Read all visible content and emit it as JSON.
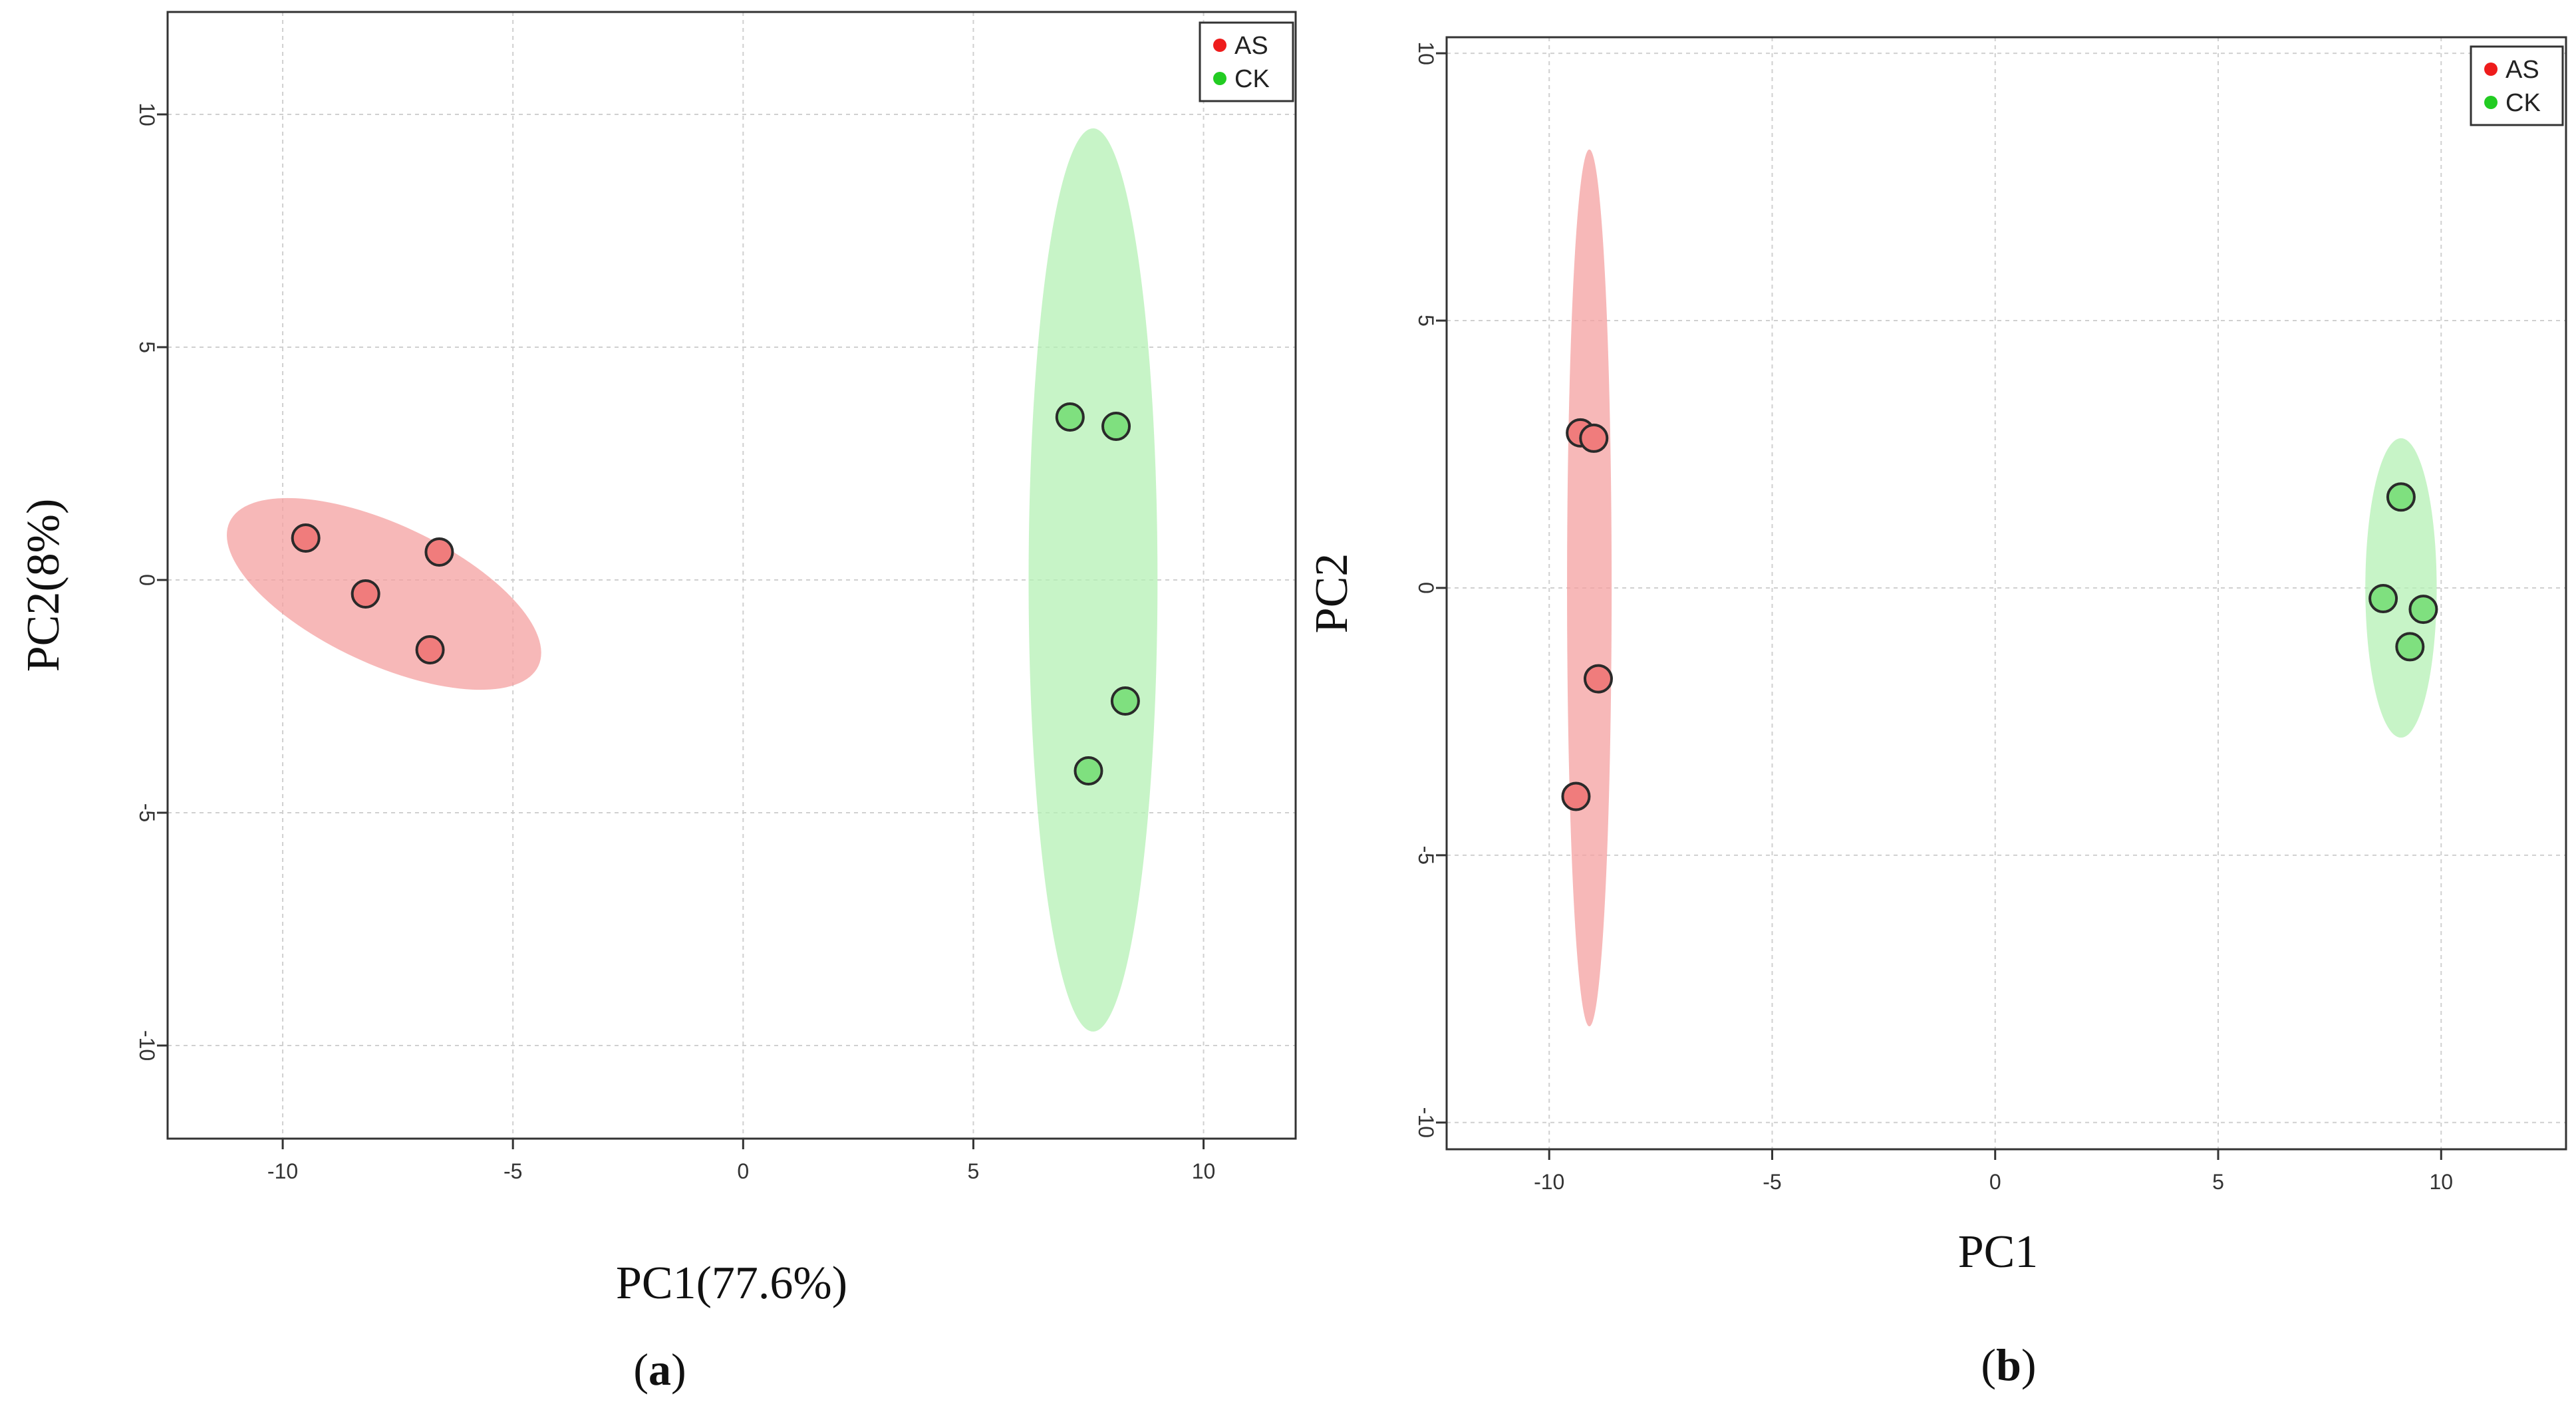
{
  "colors": {
    "as_point": "#f07c7c",
    "ck_point": "#7fe07f",
    "as_ellipse": "#f4a0a0",
    "ck_ellipse": "#b4f0b4",
    "as_legend": "#ee1c1c",
    "ck_legend": "#22cc22",
    "grid": "#d0d0d0"
  },
  "chart_data": [
    {
      "panel": "(a)",
      "panel_letter": "a",
      "type": "scatter",
      "xlabel": "PC1(77.6%)",
      "ylabel": "PC2(8%)",
      "xlim": [
        -12.5,
        12
      ],
      "ylim": [
        -12,
        12.2
      ],
      "xticks": [
        -10,
        -5,
        0,
        5,
        10
      ],
      "yticks": [
        -10,
        -5,
        0,
        5,
        10
      ],
      "grid": true,
      "legend_position": "top-right",
      "series": [
        {
          "name": "AS",
          "x": [
            -9.5,
            -8.2,
            -6.6,
            -6.8
          ],
          "y": [
            0.9,
            -0.3,
            0.6,
            -1.5
          ],
          "ellipse": {
            "cx": -7.8,
            "cy": -0.3,
            "rx": 3.7,
            "ry": 1.5,
            "rotate_deg": 25
          }
        },
        {
          "name": "CK",
          "x": [
            7.1,
            8.1,
            8.3,
            7.5
          ],
          "y": [
            3.5,
            3.3,
            -2.6,
            -4.1
          ],
          "ellipse": {
            "cx": 7.6,
            "cy": 0.0,
            "rx": 1.4,
            "ry": 9.7,
            "rotate_deg": 0
          }
        }
      ]
    },
    {
      "panel": "(b)",
      "panel_letter": "b",
      "type": "scatter",
      "xlabel": "PC1",
      "ylabel": "PC2",
      "xlim": [
        -12.3,
        12.8
      ],
      "ylim": [
        -10.5,
        10.3
      ],
      "xticks": [
        -10,
        -5,
        0,
        5,
        10
      ],
      "yticks": [
        -10,
        -5,
        0,
        5,
        10
      ],
      "grid": true,
      "legend_position": "top-right",
      "series": [
        {
          "name": "AS",
          "x": [
            -9.3,
            -9.0,
            -8.9,
            -9.4
          ],
          "y": [
            2.9,
            2.8,
            -1.7,
            -3.9
          ],
          "ellipse": {
            "cx": -9.1,
            "cy": 0.0,
            "rx": 0.5,
            "ry": 8.2,
            "rotate_deg": 0
          }
        },
        {
          "name": "CK",
          "x": [
            9.1,
            8.7,
            9.6,
            9.3
          ],
          "y": [
            1.7,
            -0.2,
            -0.4,
            -1.1
          ],
          "ellipse": {
            "cx": 9.1,
            "cy": 0.0,
            "rx": 0.8,
            "ry": 2.8,
            "rotate_deg": 0
          }
        }
      ]
    }
  ]
}
